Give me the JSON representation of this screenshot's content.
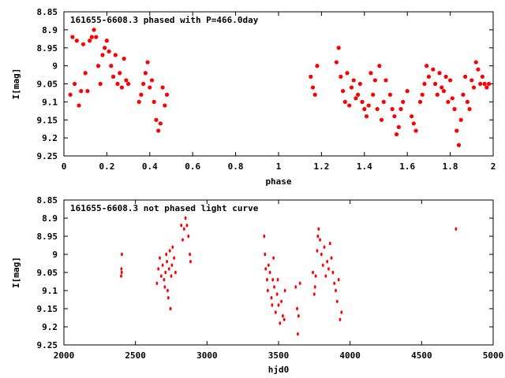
{
  "chart_data": [
    {
      "type": "scatter",
      "title": "161655-6608.3 phased with P=466.0day",
      "xlabel": "phase",
      "ylabel": "I[mag]",
      "xlim": [
        0,
        2
      ],
      "ylim": [
        9.25,
        8.85
      ],
      "y_inverted": true,
      "xticks": [
        "0",
        "0.2",
        "0.4",
        "0.6",
        "0.8",
        "1",
        "1.2",
        "1.4",
        "1.6",
        "1.8",
        "2"
      ],
      "yticks": [
        "8.85",
        "8.9",
        "8.95",
        "9",
        "9.05",
        "9.1",
        "9.15",
        "9.2",
        "9.25"
      ],
      "grid": false,
      "marker_color": "#ff0000",
      "points": [
        [
          0.03,
          9.08
        ],
        [
          0.04,
          8.92
        ],
        [
          0.05,
          9.05
        ],
        [
          0.06,
          8.93
        ],
        [
          0.07,
          9.11
        ],
        [
          0.08,
          9.07
        ],
        [
          0.09,
          8.94
        ],
        [
          0.1,
          9.02
        ],
        [
          0.11,
          9.07
        ],
        [
          0.12,
          8.93
        ],
        [
          0.13,
          8.92
        ],
        [
          0.14,
          8.9
        ],
        [
          0.15,
          8.92
        ],
        [
          0.16,
          9.0
        ],
        [
          0.17,
          9.05
        ],
        [
          0.18,
          8.97
        ],
        [
          0.19,
          8.95
        ],
        [
          0.2,
          8.93
        ],
        [
          0.21,
          8.96
        ],
        [
          0.22,
          9.0
        ],
        [
          0.23,
          9.03
        ],
        [
          0.24,
          8.97
        ],
        [
          0.25,
          9.05
        ],
        [
          0.26,
          9.02
        ],
        [
          0.27,
          9.06
        ],
        [
          0.28,
          8.98
        ],
        [
          0.29,
          9.04
        ],
        [
          0.3,
          9.05
        ],
        [
          0.35,
          9.1
        ],
        [
          0.36,
          9.08
        ],
        [
          0.37,
          9.05
        ],
        [
          0.38,
          9.02
        ],
        [
          0.39,
          8.99
        ],
        [
          0.4,
          9.06
        ],
        [
          0.41,
          9.04
        ],
        [
          0.42,
          9.1
        ],
        [
          0.43,
          9.15
        ],
        [
          0.44,
          9.18
        ],
        [
          0.45,
          9.16
        ],
        [
          0.46,
          9.06
        ],
        [
          0.47,
          9.11
        ],
        [
          0.48,
          9.08
        ],
        [
          1.15,
          9.03
        ],
        [
          1.16,
          9.06
        ],
        [
          1.17,
          9.08
        ],
        [
          1.18,
          9.0
        ],
        [
          1.27,
          8.99
        ],
        [
          1.28,
          8.95
        ],
        [
          1.29,
          9.03
        ],
        [
          1.3,
          9.07
        ],
        [
          1.31,
          9.1
        ],
        [
          1.32,
          9.02
        ],
        [
          1.33,
          9.11
        ],
        [
          1.34,
          9.06
        ],
        [
          1.35,
          9.04
        ],
        [
          1.36,
          9.09
        ],
        [
          1.37,
          9.08
        ],
        [
          1.38,
          9.05
        ],
        [
          1.39,
          9.1
        ],
        [
          1.4,
          9.12
        ],
        [
          1.41,
          9.14
        ],
        [
          1.42,
          9.11
        ],
        [
          1.43,
          9.02
        ],
        [
          1.44,
          9.08
        ],
        [
          1.45,
          9.04
        ],
        [
          1.46,
          9.12
        ],
        [
          1.47,
          9.0
        ],
        [
          1.48,
          9.15
        ],
        [
          1.49,
          9.1
        ],
        [
          1.5,
          9.04
        ],
        [
          1.52,
          9.08
        ],
        [
          1.53,
          9.12
        ],
        [
          1.54,
          9.14
        ],
        [
          1.55,
          9.19
        ],
        [
          1.56,
          9.17
        ],
        [
          1.57,
          9.12
        ],
        [
          1.58,
          9.1
        ],
        [
          1.6,
          9.07
        ],
        [
          1.62,
          9.14
        ],
        [
          1.63,
          9.16
        ],
        [
          1.64,
          9.18
        ],
        [
          1.66,
          9.1
        ],
        [
          1.67,
          9.08
        ],
        [
          1.68,
          9.05
        ],
        [
          1.69,
          9.0
        ],
        [
          1.7,
          9.03
        ],
        [
          1.72,
          9.01
        ],
        [
          1.73,
          9.05
        ],
        [
          1.74,
          9.08
        ],
        [
          1.75,
          9.02
        ],
        [
          1.76,
          9.06
        ],
        [
          1.77,
          9.07
        ],
        [
          1.78,
          9.03
        ],
        [
          1.79,
          9.1
        ],
        [
          1.8,
          9.04
        ],
        [
          1.81,
          9.09
        ],
        [
          1.82,
          9.12
        ],
        [
          1.83,
          9.18
        ],
        [
          1.84,
          9.22
        ],
        [
          1.85,
          9.15
        ],
        [
          1.86,
          9.08
        ],
        [
          1.87,
          9.03
        ],
        [
          1.88,
          9.1
        ],
        [
          1.89,
          9.12
        ],
        [
          1.9,
          9.04
        ],
        [
          1.91,
          9.06
        ],
        [
          1.92,
          8.99
        ],
        [
          1.93,
          9.01
        ],
        [
          1.94,
          9.05
        ],
        [
          1.95,
          9.03
        ],
        [
          1.96,
          9.05
        ],
        [
          1.97,
          9.06
        ],
        [
          1.98,
          9.05
        ]
      ]
    },
    {
      "type": "scatter",
      "title": "161655-6608.3 not phased light curve",
      "xlabel": "hjd0",
      "ylabel": "I[mag]",
      "xlim": [
        2000,
        5000
      ],
      "ylim": [
        9.25,
        8.85
      ],
      "y_inverted": true,
      "xticks": [
        "2000",
        "2500",
        "3000",
        "3500",
        "4000",
        "4500",
        "5000"
      ],
      "yticks": [
        "8.85",
        "8.9",
        "8.95",
        "9",
        "9.05",
        "9.1",
        "9.15",
        "9.2",
        "9.25"
      ],
      "grid": false,
      "marker_color": "#ff0000",
      "points": [
        [
          2400,
          9.06
        ],
        [
          2405,
          9.0
        ],
        [
          2402,
          9.04
        ],
        [
          2404,
          9.05
        ],
        [
          2650,
          9.08
        ],
        [
          2660,
          9.04
        ],
        [
          2670,
          9.01
        ],
        [
          2680,
          9.06
        ],
        [
          2690,
          9.03
        ],
        [
          2700,
          9.07
        ],
        [
          2705,
          9.09
        ],
        [
          2710,
          9.05
        ],
        [
          2715,
          9.0
        ],
        [
          2720,
          9.02
        ],
        [
          2725,
          9.1
        ],
        [
          2730,
          9.12
        ],
        [
          2735,
          9.04
        ],
        [
          2740,
          8.99
        ],
        [
          2745,
          9.15
        ],
        [
          2750,
          9.06
        ],
        [
          2755,
          9.03
        ],
        [
          2760,
          8.98
        ],
        [
          2770,
          9.01
        ],
        [
          2780,
          9.05
        ],
        [
          2820,
          8.92
        ],
        [
          2830,
          8.96
        ],
        [
          2840,
          8.93
        ],
        [
          2850,
          8.9
        ],
        [
          2860,
          8.92
        ],
        [
          2870,
          8.95
        ],
        [
          2880,
          9.0
        ],
        [
          2885,
          9.02
        ],
        [
          3400,
          8.95
        ],
        [
          3405,
          9.0
        ],
        [
          3410,
          9.04
        ],
        [
          3420,
          9.07
        ],
        [
          3425,
          9.1
        ],
        [
          3430,
          9.03
        ],
        [
          3440,
          9.05
        ],
        [
          3450,
          9.12
        ],
        [
          3455,
          9.14
        ],
        [
          3460,
          9.07
        ],
        [
          3465,
          9.01
        ],
        [
          3470,
          9.09
        ],
        [
          3480,
          9.16
        ],
        [
          3490,
          9.11
        ],
        [
          3495,
          9.07
        ],
        [
          3500,
          9.14
        ],
        [
          3510,
          9.19
        ],
        [
          3520,
          9.13
        ],
        [
          3530,
          9.17
        ],
        [
          3540,
          9.18
        ],
        [
          3545,
          9.1
        ],
        [
          3620,
          9.09
        ],
        [
          3630,
          9.15
        ],
        [
          3635,
          9.22
        ],
        [
          3640,
          9.17
        ],
        [
          3650,
          9.08
        ],
        [
          3740,
          9.05
        ],
        [
          3750,
          9.11
        ],
        [
          3755,
          9.09
        ],
        [
          3760,
          9.06
        ],
        [
          3770,
          8.99
        ],
        [
          3775,
          8.95
        ],
        [
          3780,
          8.93
        ],
        [
          3790,
          8.96
        ],
        [
          3800,
          9.0
        ],
        [
          3810,
          9.03
        ],
        [
          3820,
          8.98
        ],
        [
          3830,
          9.06
        ],
        [
          3840,
          9.02
        ],
        [
          3850,
          9.04
        ],
        [
          3860,
          8.97
        ],
        [
          3870,
          9.01
        ],
        [
          3880,
          9.05
        ],
        [
          3890,
          9.08
        ],
        [
          3900,
          9.1
        ],
        [
          3910,
          9.13
        ],
        [
          3920,
          9.07
        ],
        [
          3930,
          9.18
        ],
        [
          3940,
          9.16
        ],
        [
          4740,
          8.93
        ]
      ]
    }
  ]
}
